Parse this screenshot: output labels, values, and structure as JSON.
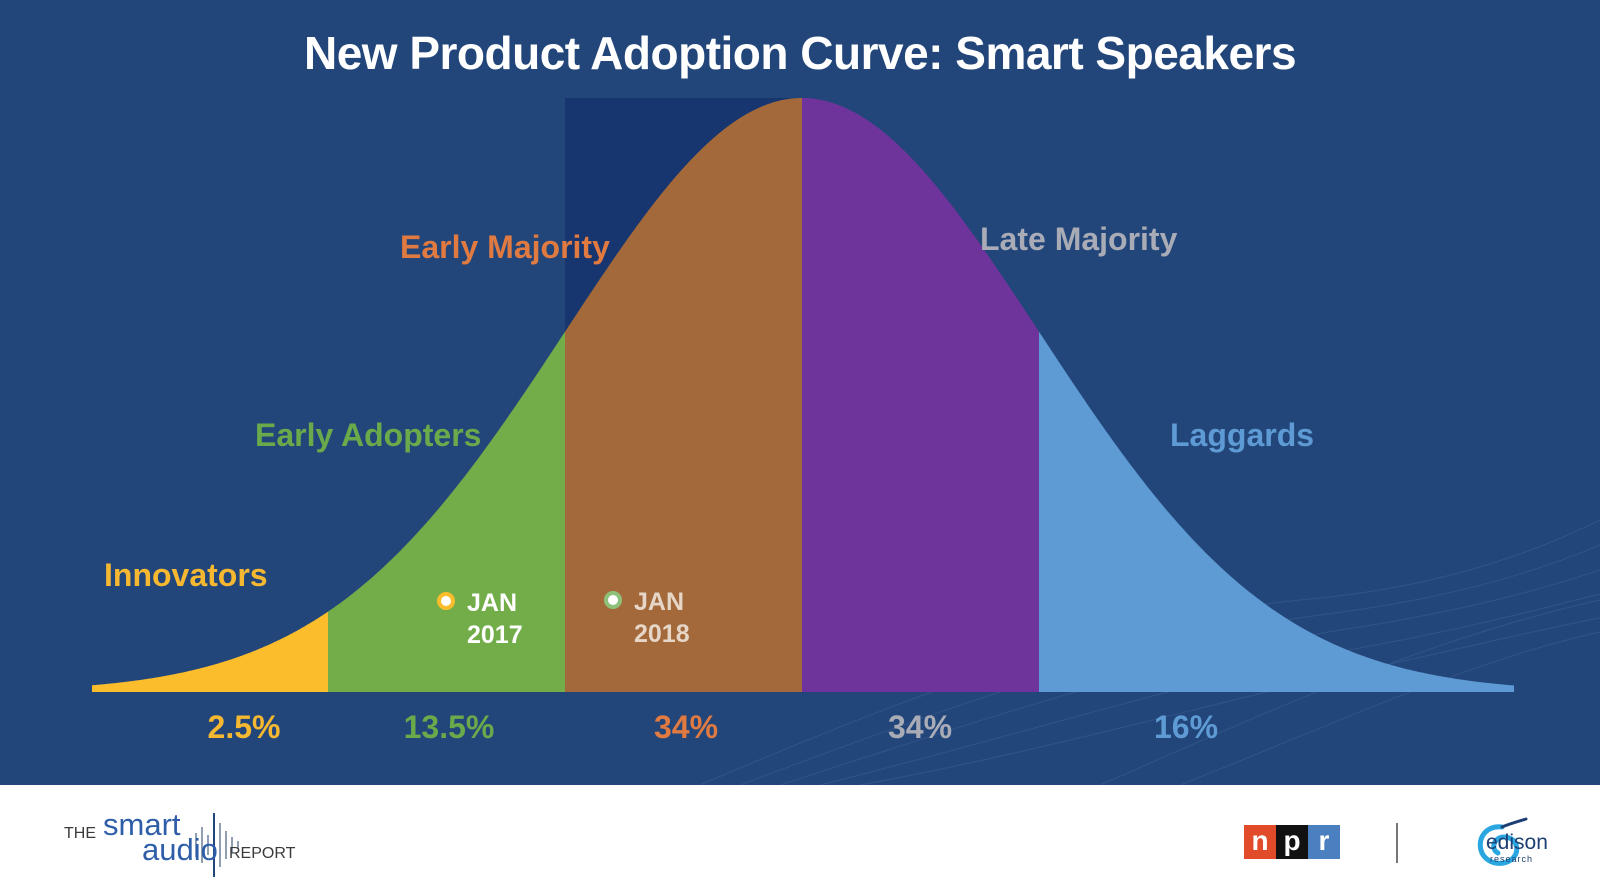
{
  "title": "New Product Adoption Curve: Smart Speakers",
  "chart_data": {
    "type": "area",
    "title": "New Product Adoption Curve: Smart Speakers",
    "curve": "normal distribution (bell curve)",
    "segments": [
      {
        "name": "Innovators",
        "value": 2.5,
        "value_label": "2.5%",
        "color": "#fbbd2c",
        "label_color": "#f5b830"
      },
      {
        "name": "Early Adopters",
        "value": 13.5,
        "value_label": "13.5%",
        "color": "#72ad4a",
        "label_color": "#6aaa4a"
      },
      {
        "name": "Early Majority",
        "value": 34,
        "value_label": "34%",
        "color": "#a3693a",
        "label_color": "#e07a40"
      },
      {
        "name": "Late Majority",
        "value": 34,
        "value_label": "34%",
        "color": "#6f349c",
        "label_color": "#a9acb6"
      },
      {
        "name": "Laggards",
        "value": 16,
        "value_label": "16%",
        "color": "#5e9bd4",
        "label_color": "#5e9bd4"
      }
    ],
    "markers": [
      {
        "line1": "JAN",
        "line2": "2017",
        "color": "#fbbd2c"
      },
      {
        "line1": "JAN",
        "line2": "2018",
        "color": "#8fc07a"
      }
    ],
    "highlight_color": "#17366f",
    "background_color": "#23467a"
  },
  "footer": {
    "sar_the": "THE",
    "sar_smart": "smart",
    "sar_audio": "audio",
    "sar_report": "REPORT",
    "npr_letters": [
      "n",
      "p",
      "r"
    ],
    "edison_word": "edison",
    "edison_sub": "research"
  }
}
